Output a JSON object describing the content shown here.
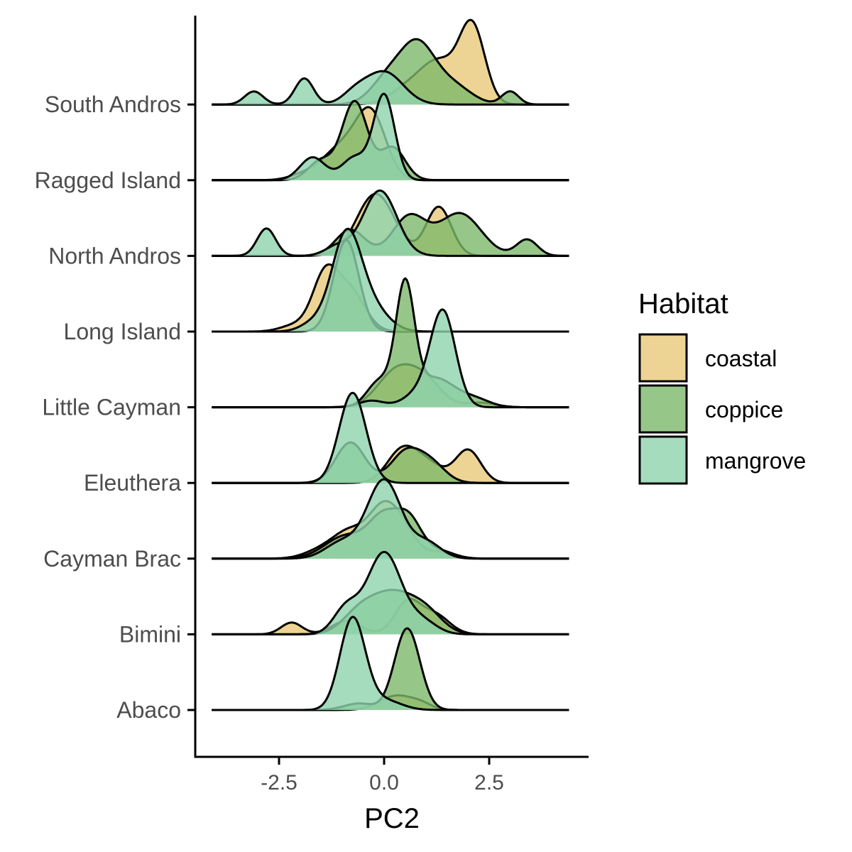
{
  "chart_data": {
    "type": "ridgeline",
    "xlabel": "PC2",
    "ylabel": "",
    "title": "",
    "xlim": [
      -4.5,
      4.8
    ],
    "x_ticks": [
      -2.5,
      0.0,
      2.5
    ],
    "x_tick_labels": [
      "-2.5",
      "0.0",
      "2.5"
    ],
    "x_range_drawn": [
      -4.1,
      4.4
    ],
    "categories": [
      "Abaco",
      "Bimini",
      "Cayman Brac",
      "Eleuthera",
      "Little Cayman",
      "Long Island",
      "North Andros",
      "Ragged Island",
      "South Andros"
    ],
    "grid": false,
    "legend": {
      "title": "Habitat",
      "position": "right",
      "items": [
        {
          "name": "coastal",
          "color": "#E8C97A"
        },
        {
          "name": "coppice",
          "color": "#7DB96A"
        },
        {
          "name": "mangrove",
          "color": "#8FD3AE"
        }
      ]
    },
    "series": [
      {
        "name": "coastal",
        "color": "#E8C97A",
        "densities": {
          "Abaco": [
            [
              0.3,
              0.4,
              0.22
            ],
            [
              0.9,
              0.25,
              0.07
            ]
          ],
          "Bimini": [
            [
              -2.2,
              0.25,
              0.18
            ],
            [
              0.55,
              0.3,
              0.48
            ],
            [
              1.2,
              0.35,
              0.3
            ],
            [
              -0.9,
              0.35,
              0.2
            ]
          ],
          "Cayman Brac": [
            [
              -1.5,
              0.4,
              0.12
            ],
            [
              -0.8,
              0.4,
              0.4
            ],
            [
              0.0,
              0.35,
              0.75
            ],
            [
              0.5,
              0.3,
              0.3
            ],
            [
              1.3,
              0.35,
              0.1
            ]
          ],
          "Eleuthera": [
            [
              0.4,
              0.35,
              0.45
            ],
            [
              1.0,
              0.4,
              0.3
            ],
            [
              2.0,
              0.3,
              0.5
            ]
          ],
          "Little Cayman": [
            [
              0.3,
              0.45,
              0.55
            ],
            [
              1.0,
              0.4,
              0.35
            ],
            [
              2.3,
              0.35,
              0.07
            ]
          ],
          "Long Island": [
            [
              -2.1,
              0.35,
              0.1
            ],
            [
              -1.4,
              0.3,
              0.85
            ],
            [
              -0.8,
              0.35,
              0.6
            ]
          ],
          "North Andros": [
            [
              -0.2,
              0.45,
              0.95
            ],
            [
              1.3,
              0.3,
              0.75
            ]
          ],
          "Ragged Island": [
            [
              -1.0,
              0.45,
              0.5
            ],
            [
              -0.3,
              0.35,
              0.95
            ],
            [
              -1.9,
              0.35,
              0.08
            ]
          ],
          "South Andros": [
            [
              1.3,
              0.45,
              0.65
            ],
            [
              2.1,
              0.3,
              1.15
            ],
            [
              0.5,
              0.4,
              0.2
            ]
          ]
        }
      },
      {
        "name": "coppice",
        "color": "#7DB96A",
        "densities": {
          "Abaco": [
            [
              0.55,
              0.3,
              1.25
            ],
            [
              -0.6,
              0.35,
              0.1
            ]
          ],
          "Bimini": [
            [
              0.2,
              0.5,
              0.6
            ],
            [
              -0.6,
              0.4,
              0.3
            ],
            [
              1.0,
              0.4,
              0.3
            ]
          ],
          "Cayman Brac": [
            [
              -0.9,
              0.5,
              0.35
            ],
            [
              0.0,
              0.35,
              0.6
            ],
            [
              0.6,
              0.3,
              0.55
            ],
            [
              1.3,
              0.35,
              0.12
            ]
          ],
          "Eleuthera": [
            [
              -0.8,
              0.35,
              0.62
            ],
            [
              0.5,
              0.35,
              0.45
            ],
            [
              1.1,
              0.35,
              0.3
            ]
          ],
          "Little Cayman": [
            [
              0.5,
              0.22,
              1.75
            ],
            [
              -0.1,
              0.3,
              0.4
            ],
            [
              1.2,
              0.5,
              0.45
            ],
            [
              2.2,
              0.35,
              0.1
            ]
          ],
          "Long Island": [
            [
              -0.9,
              0.3,
              1.4
            ]
          ],
          "North Andros": [
            [
              0.6,
              0.4,
              0.6
            ],
            [
              1.8,
              0.5,
              0.65
            ],
            [
              3.4,
              0.25,
              0.25
            ],
            [
              -0.8,
              0.35,
              0.4
            ]
          ],
          "Ragged Island": [
            [
              -0.7,
              0.3,
              1.2
            ],
            [
              -1.5,
              0.3,
              0.3
            ],
            [
              0.2,
              0.3,
              0.5
            ]
          ],
          "South Andros": [
            [
              0.8,
              0.4,
              0.85
            ],
            [
              0.1,
              0.4,
              0.4
            ],
            [
              1.6,
              0.45,
              0.3
            ],
            [
              3.0,
              0.2,
              0.2
            ]
          ]
        }
      },
      {
        "name": "mangrove",
        "color": "#8FD3AE",
        "densities": {
          "Abaco": [
            [
              -0.75,
              0.3,
              1.4
            ],
            [
              0.0,
              0.4,
              0.15
            ]
          ],
          "Bimini": [
            [
              0.0,
              0.4,
              1.25
            ],
            [
              -0.9,
              0.3,
              0.4
            ],
            [
              0.9,
              0.35,
              0.2
            ]
          ],
          "Cayman Brac": [
            [
              0.0,
              0.4,
              1.2
            ],
            [
              -1.0,
              0.4,
              0.25
            ],
            [
              1.0,
              0.35,
              0.25
            ]
          ],
          "Eleuthera": [
            [
              -0.75,
              0.32,
              1.38
            ]
          ],
          "Little Cayman": [
            [
              1.4,
              0.3,
              1.45
            ],
            [
              0.8,
              0.35,
              0.2
            ],
            [
              -0.3,
              0.3,
              0.1
            ]
          ],
          "Long Island": [
            [
              -0.9,
              0.35,
              1.45
            ],
            [
              -0.3,
              0.4,
              0.35
            ],
            [
              -1.7,
              0.3,
              0.12
            ]
          ],
          "North Andros": [
            [
              -2.8,
              0.22,
              0.42
            ],
            [
              -0.1,
              0.4,
              1.0
            ],
            [
              -1.1,
              0.3,
              0.15
            ]
          ],
          "Ragged Island": [
            [
              0.0,
              0.25,
              1.3
            ],
            [
              -0.7,
              0.3,
              0.35
            ],
            [
              -1.7,
              0.3,
              0.35
            ]
          ],
          "South Andros": [
            [
              -3.1,
              0.22,
              0.2
            ],
            [
              -1.9,
              0.22,
              0.4
            ],
            [
              0.0,
              0.45,
              0.5
            ],
            [
              -0.7,
              0.3,
              0.15
            ]
          ]
        }
      }
    ]
  }
}
